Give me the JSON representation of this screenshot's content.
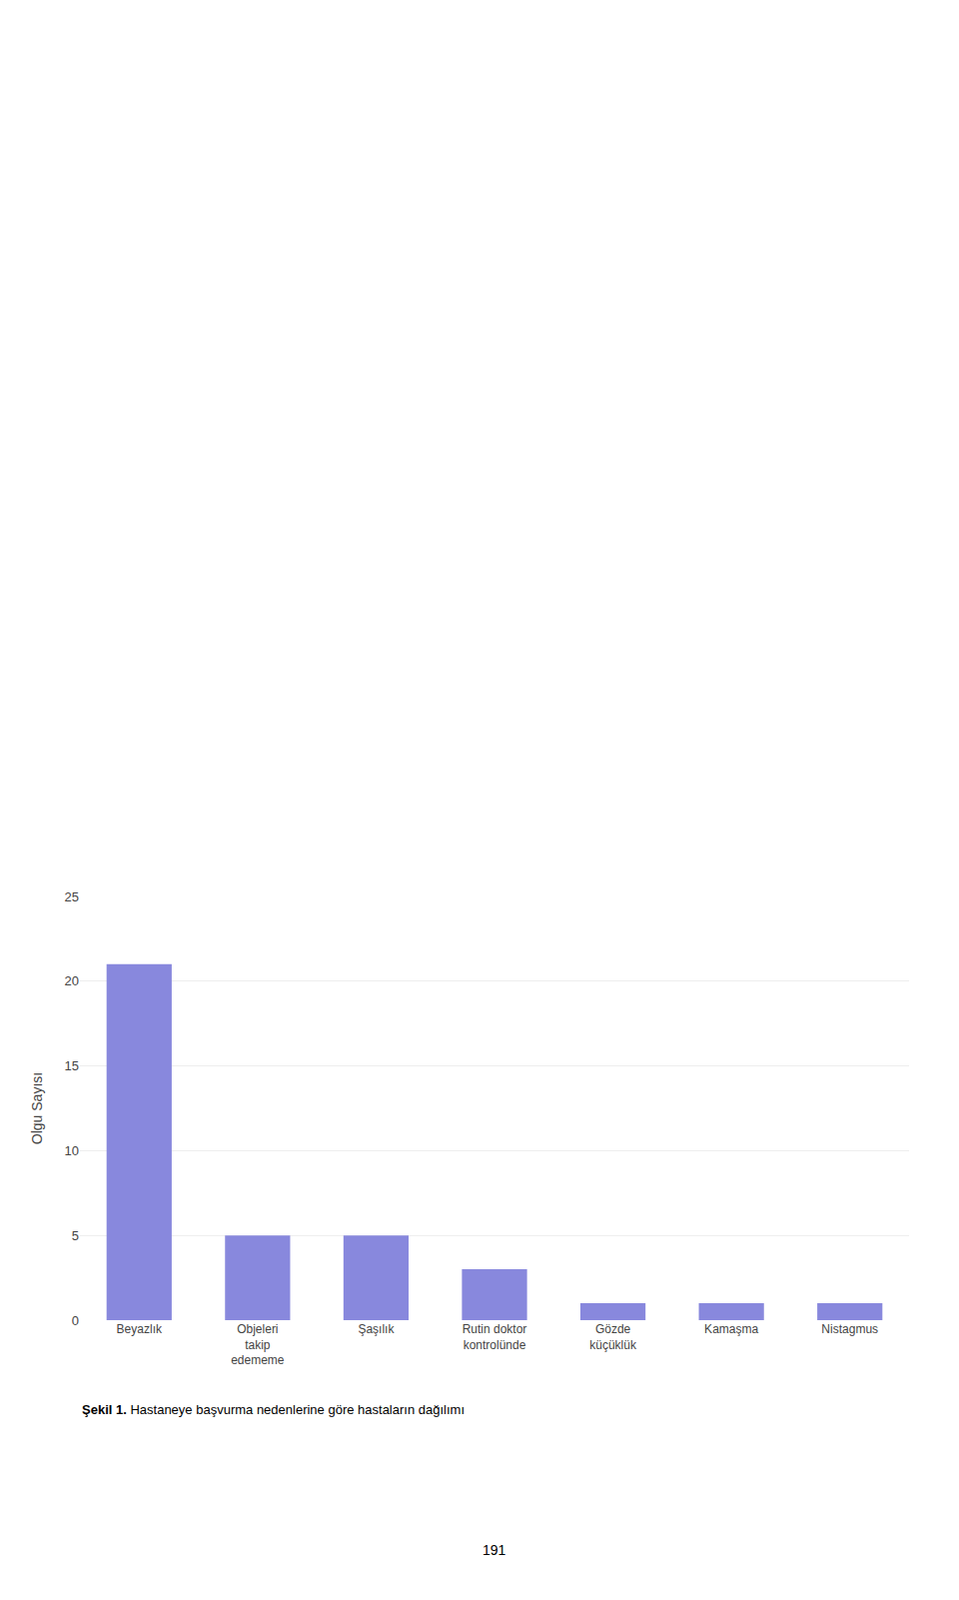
{
  "chart_data": {
    "type": "bar",
    "ylabel": "Olgu Sayısı",
    "categories": [
      "Beyazlık",
      "Objeleri\ntakip\nedememe",
      "Şaşılık",
      "Rutin doktor\nkontrolünde",
      "Gözde\nküçüklük",
      "Kamaşma",
      "Nistagmus"
    ],
    "values": [
      21,
      5,
      5,
      3,
      1,
      1,
      1
    ],
    "color": "#8888dd",
    "ylim": [
      0,
      25
    ],
    "yticks": [
      0,
      5,
      10,
      15,
      20,
      25
    ],
    "grid": true,
    "annotations": [
      "Şekil 1.",
      "Hastaneye başvurma nedenlerine göre hastaların dağılımı",
      "191"
    ]
  }
}
